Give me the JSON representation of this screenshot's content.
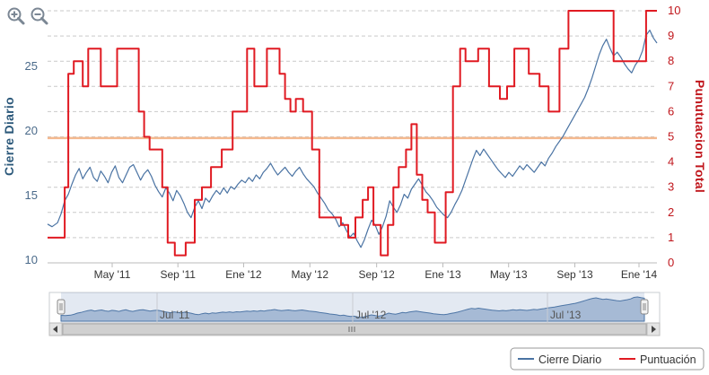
{
  "zoom_controls": {
    "zoom_in_icon": "zoom-in-icon",
    "zoom_out_icon": "zoom-out-icon"
  },
  "chart_data": {
    "type": "line",
    "y_left": {
      "label": "Cierre Diario",
      "ticks": [
        10,
        15,
        20,
        25
      ],
      "range": [
        9.8,
        29.3
      ]
    },
    "y_right": {
      "label": "Punutuacion Total",
      "ticks": [
        0,
        1,
        2,
        3,
        4,
        5,
        6,
        7,
        8,
        9,
        10
      ],
      "range": [
        0,
        10
      ]
    },
    "x_ticks": [
      {
        "label": "May '11",
        "t": 0.096
      },
      {
        "label": "Sep '11",
        "t": 0.221
      },
      {
        "label": "Ene '12",
        "t": 0.346
      },
      {
        "label": "May '12",
        "t": 0.472
      },
      {
        "label": "Sep '12",
        "t": 0.599
      },
      {
        "label": "Ene '13",
        "t": 0.725
      },
      {
        "label": "May '13",
        "t": 0.85
      },
      {
        "label": "Sep '13",
        "t": 0.976
      },
      {
        "label": "Ene '14",
        "t": 1.098
      }
    ],
    "x_range_months": [
      -1.05,
      32.7
    ],
    "reference_line": {
      "axis": "right",
      "value": 4.95,
      "color": "#f4b98f"
    },
    "series": [
      {
        "name": "Cierre Diario",
        "color": "#4a73a3",
        "axis": "left",
        "points": [
          [
            -1.05,
            12.8
          ],
          [
            -0.8,
            12.6
          ],
          [
            -0.5,
            12.9
          ],
          [
            -0.3,
            13.6
          ],
          [
            -0.1,
            14.6
          ],
          [
            0.1,
            15.1
          ],
          [
            0.3,
            15.9
          ],
          [
            0.5,
            16.6
          ],
          [
            0.7,
            17.1
          ],
          [
            0.9,
            16.3
          ],
          [
            1.1,
            16.8
          ],
          [
            1.3,
            17.2
          ],
          [
            1.5,
            16.4
          ],
          [
            1.7,
            16.1
          ],
          [
            1.9,
            16.9
          ],
          [
            2.1,
            16.5
          ],
          [
            2.3,
            16.0
          ],
          [
            2.5,
            16.8
          ],
          [
            2.7,
            17.3
          ],
          [
            2.9,
            16.4
          ],
          [
            3.1,
            16.0
          ],
          [
            3.3,
            16.6
          ],
          [
            3.5,
            17.2
          ],
          [
            3.7,
            17.4
          ],
          [
            3.9,
            16.8
          ],
          [
            4.1,
            16.2
          ],
          [
            4.3,
            16.7
          ],
          [
            4.5,
            17.0
          ],
          [
            4.7,
            16.5
          ],
          [
            4.9,
            15.8
          ],
          [
            5.1,
            15.3
          ],
          [
            5.3,
            14.9
          ],
          [
            5.5,
            15.6
          ],
          [
            5.7,
            15.2
          ],
          [
            5.9,
            14.6
          ],
          [
            6.1,
            15.4
          ],
          [
            6.3,
            15.0
          ],
          [
            6.5,
            14.4
          ],
          [
            6.7,
            13.7
          ],
          [
            6.9,
            13.3
          ],
          [
            7.1,
            14.1
          ],
          [
            7.3,
            14.6
          ],
          [
            7.5,
            14.0
          ],
          [
            7.7,
            14.8
          ],
          [
            7.9,
            14.5
          ],
          [
            8.1,
            15.0
          ],
          [
            8.3,
            15.4
          ],
          [
            8.5,
            15.1
          ],
          [
            8.7,
            15.6
          ],
          [
            8.9,
            15.2
          ],
          [
            9.1,
            15.7
          ],
          [
            9.3,
            15.5
          ],
          [
            9.5,
            15.9
          ],
          [
            9.7,
            16.2
          ],
          [
            9.9,
            16.0
          ],
          [
            10.1,
            16.4
          ],
          [
            10.3,
            16.1
          ],
          [
            10.5,
            16.6
          ],
          [
            10.7,
            16.3
          ],
          [
            10.9,
            16.8
          ],
          [
            11.1,
            17.1
          ],
          [
            11.3,
            17.5
          ],
          [
            11.5,
            17.0
          ],
          [
            11.7,
            16.6
          ],
          [
            11.9,
            16.9
          ],
          [
            12.1,
            17.2
          ],
          [
            12.3,
            16.8
          ],
          [
            12.5,
            16.5
          ],
          [
            12.7,
            16.9
          ],
          [
            12.9,
            17.2
          ],
          [
            13.1,
            16.7
          ],
          [
            13.3,
            16.3
          ],
          [
            13.5,
            16.0
          ],
          [
            13.7,
            15.7
          ],
          [
            13.9,
            15.2
          ],
          [
            14.1,
            14.8
          ],
          [
            14.3,
            14.4
          ],
          [
            14.5,
            13.9
          ],
          [
            14.7,
            13.6
          ],
          [
            14.9,
            13.2
          ],
          [
            15.1,
            12.6
          ],
          [
            15.3,
            12.9
          ],
          [
            15.5,
            12.3
          ],
          [
            15.7,
            11.8
          ],
          [
            15.9,
            12.1
          ],
          [
            16.1,
            11.5
          ],
          [
            16.3,
            11.0
          ],
          [
            16.5,
            11.6
          ],
          [
            16.7,
            12.4
          ],
          [
            16.9,
            13.1
          ],
          [
            17.1,
            12.7
          ],
          [
            17.3,
            12.0
          ],
          [
            17.5,
            12.6
          ],
          [
            17.7,
            13.4
          ],
          [
            17.9,
            14.6
          ],
          [
            18.1,
            14.1
          ],
          [
            18.3,
            13.7
          ],
          [
            18.5,
            14.3
          ],
          [
            18.7,
            15.1
          ],
          [
            18.9,
            14.8
          ],
          [
            19.1,
            15.5
          ],
          [
            19.3,
            15.9
          ],
          [
            19.5,
            16.3
          ],
          [
            19.7,
            15.8
          ],
          [
            19.9,
            15.3
          ],
          [
            20.1,
            15.0
          ],
          [
            20.3,
            14.6
          ],
          [
            20.5,
            14.1
          ],
          [
            20.7,
            13.8
          ],
          [
            20.9,
            13.5
          ],
          [
            21.1,
            13.3
          ],
          [
            21.3,
            13.7
          ],
          [
            21.5,
            14.3
          ],
          [
            21.7,
            14.8
          ],
          [
            21.9,
            15.4
          ],
          [
            22.1,
            16.2
          ],
          [
            22.3,
            17.0
          ],
          [
            22.5,
            17.8
          ],
          [
            22.7,
            18.5
          ],
          [
            22.9,
            18.1
          ],
          [
            23.1,
            18.6
          ],
          [
            23.3,
            18.2
          ],
          [
            23.5,
            17.8
          ],
          [
            23.7,
            17.4
          ],
          [
            23.9,
            17.0
          ],
          [
            24.1,
            16.7
          ],
          [
            24.3,
            16.4
          ],
          [
            24.5,
            16.8
          ],
          [
            24.7,
            16.5
          ],
          [
            24.9,
            16.9
          ],
          [
            25.1,
            17.3
          ],
          [
            25.3,
            17.0
          ],
          [
            25.5,
            17.4
          ],
          [
            25.7,
            17.1
          ],
          [
            25.9,
            16.8
          ],
          [
            26.1,
            17.2
          ],
          [
            26.3,
            17.6
          ],
          [
            26.5,
            17.3
          ],
          [
            26.7,
            17.9
          ],
          [
            26.9,
            18.3
          ],
          [
            27.1,
            18.8
          ],
          [
            27.3,
            19.2
          ],
          [
            27.5,
            19.6
          ],
          [
            27.7,
            20.1
          ],
          [
            27.9,
            20.6
          ],
          [
            28.1,
            21.1
          ],
          [
            28.3,
            21.6
          ],
          [
            28.5,
            22.1
          ],
          [
            28.7,
            22.6
          ],
          [
            28.9,
            23.3
          ],
          [
            29.1,
            24.1
          ],
          [
            29.3,
            25.0
          ],
          [
            29.5,
            25.9
          ],
          [
            29.7,
            26.6
          ],
          [
            29.9,
            27.1
          ],
          [
            30.1,
            26.4
          ],
          [
            30.3,
            25.8
          ],
          [
            30.5,
            26.1
          ],
          [
            30.7,
            25.7
          ],
          [
            30.9,
            25.2
          ],
          [
            31.1,
            24.8
          ],
          [
            31.3,
            24.5
          ],
          [
            31.5,
            25.1
          ],
          [
            31.7,
            25.5
          ],
          [
            31.9,
            26.2
          ],
          [
            32.1,
            27.4
          ],
          [
            32.3,
            27.8
          ],
          [
            32.5,
            27.2
          ],
          [
            32.7,
            26.8
          ]
        ]
      },
      {
        "name": "Puntuación",
        "color": "#e01a22",
        "axis": "right",
        "step": true,
        "points": [
          [
            -1.05,
            1.0
          ],
          [
            -0.1,
            3.0
          ],
          [
            0.1,
            7.5
          ],
          [
            0.4,
            8.0
          ],
          [
            0.9,
            7.0
          ],
          [
            1.2,
            8.5
          ],
          [
            1.9,
            7.0
          ],
          [
            2.8,
            8.5
          ],
          [
            4.0,
            6.0
          ],
          [
            4.3,
            5.0
          ],
          [
            4.6,
            4.5
          ],
          [
            5.3,
            3.0
          ],
          [
            5.6,
            0.8
          ],
          [
            6.0,
            0.3
          ],
          [
            6.6,
            0.8
          ],
          [
            7.1,
            2.5
          ],
          [
            7.5,
            3.0
          ],
          [
            8.0,
            3.8
          ],
          [
            8.6,
            4.5
          ],
          [
            9.2,
            6.0
          ],
          [
            10.0,
            8.5
          ],
          [
            10.4,
            7.0
          ],
          [
            11.1,
            8.5
          ],
          [
            11.8,
            7.5
          ],
          [
            12.1,
            6.5
          ],
          [
            12.4,
            6.0
          ],
          [
            12.7,
            6.5
          ],
          [
            13.1,
            6.0
          ],
          [
            13.6,
            4.5
          ],
          [
            14.0,
            1.8
          ],
          [
            15.2,
            1.5
          ],
          [
            15.6,
            1.0
          ],
          [
            16.0,
            1.8
          ],
          [
            16.4,
            2.5
          ],
          [
            16.7,
            3.0
          ],
          [
            17.0,
            1.5
          ],
          [
            17.4,
            0.3
          ],
          [
            17.8,
            1.5
          ],
          [
            18.1,
            3.0
          ],
          [
            18.4,
            3.8
          ],
          [
            18.8,
            4.5
          ],
          [
            19.1,
            5.5
          ],
          [
            19.4,
            3.5
          ],
          [
            19.7,
            2.5
          ],
          [
            20.0,
            2.0
          ],
          [
            20.4,
            0.8
          ],
          [
            21.0,
            2.8
          ],
          [
            21.4,
            7.0
          ],
          [
            21.8,
            8.5
          ],
          [
            22.1,
            8.0
          ],
          [
            22.8,
            8.5
          ],
          [
            23.4,
            7.0
          ],
          [
            24.0,
            6.5
          ],
          [
            24.4,
            7.0
          ],
          [
            24.8,
            8.5
          ],
          [
            25.6,
            7.5
          ],
          [
            26.2,
            7.0
          ],
          [
            26.7,
            6.0
          ],
          [
            27.3,
            8.5
          ],
          [
            27.8,
            10.0
          ],
          [
            29.9,
            10.0
          ],
          [
            30.3,
            8.0
          ],
          [
            31.7,
            8.0
          ],
          [
            32.1,
            10.0
          ],
          [
            32.7,
            10.0
          ]
        ]
      }
    ],
    "legend": {
      "position": "bottom-right",
      "items": [
        "Cierre Diario",
        "Puntuación"
      ]
    }
  },
  "navigator": {
    "labels": [
      "Jul '11",
      "Jul '12",
      "Jul '13"
    ],
    "scrollbar_icon": "grip-icon"
  }
}
